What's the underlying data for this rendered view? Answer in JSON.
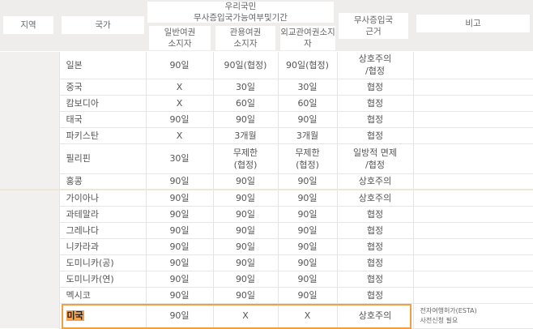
{
  "header": {
    "region": "지역",
    "country": "국가",
    "visa_free_group": "우리국민\n무사증입국가능여부및기간",
    "general": "일반여권\n소지자",
    "official": "관용여권\n소지자",
    "diplomatic": "외교관여권소지\n자",
    "basis": "무사증입국\n근거",
    "notes": "비고"
  },
  "rows": [
    {
      "country": "일본",
      "general": "90일",
      "official": "90일(협정)",
      "diplomatic": "90일(협정)",
      "basis": "상호주의\n/협정",
      "notes": ""
    },
    {
      "country": "중국",
      "general": "X",
      "official": "30일",
      "diplomatic": "30일",
      "basis": "협정",
      "notes": ""
    },
    {
      "country": "캄보디아",
      "general": "X",
      "official": "60일",
      "diplomatic": "60일",
      "basis": "협정",
      "notes": ""
    },
    {
      "country": "태국",
      "general": "90일",
      "official": "90일",
      "diplomatic": "90일",
      "basis": "협정",
      "notes": ""
    },
    {
      "country": "파키스탄",
      "general": "X",
      "official": "3개월",
      "diplomatic": "3개월",
      "basis": "협정",
      "notes": ""
    },
    {
      "country": "필리핀",
      "general": "30일",
      "official": "무제한\n(협정)",
      "diplomatic": "무제한\n(협정)",
      "basis": "일방적 면제\n/협정",
      "notes": ""
    },
    {
      "country": "홍콩",
      "general": "90일",
      "official": "90일",
      "diplomatic": "90일",
      "basis": "상호주의",
      "notes": ""
    },
    {
      "country": "가이아나",
      "general": "90일",
      "official": "90일",
      "diplomatic": "90일",
      "basis": "상호주의",
      "notes": ""
    },
    {
      "country": "과테말라",
      "general": "90일",
      "official": "90일",
      "diplomatic": "90일",
      "basis": "협정",
      "notes": ""
    },
    {
      "country": "그레나다",
      "general": "90일",
      "official": "90일",
      "diplomatic": "90일",
      "basis": "협정",
      "notes": ""
    },
    {
      "country": "니카라과",
      "general": "90일",
      "official": "90일",
      "diplomatic": "90일",
      "basis": "협정",
      "notes": ""
    },
    {
      "country": "도미니카(공)",
      "general": "90일",
      "official": "90일",
      "diplomatic": "90일",
      "basis": "협정",
      "notes": ""
    },
    {
      "country": "도미니카(연)",
      "general": "90일",
      "official": "90일",
      "diplomatic": "90일",
      "basis": "협정",
      "notes": ""
    },
    {
      "country": "멕시코",
      "general": "90일",
      "official": "90일",
      "diplomatic": "90일",
      "basis": "협정",
      "notes": ""
    },
    {
      "country": "미국",
      "general": "90일",
      "official": "X",
      "diplomatic": "X",
      "basis": "상호주의",
      "notes": "전자여행허가(ESTA)\n사전신청 필요"
    }
  ],
  "highlight_color": "#f0a040"
}
